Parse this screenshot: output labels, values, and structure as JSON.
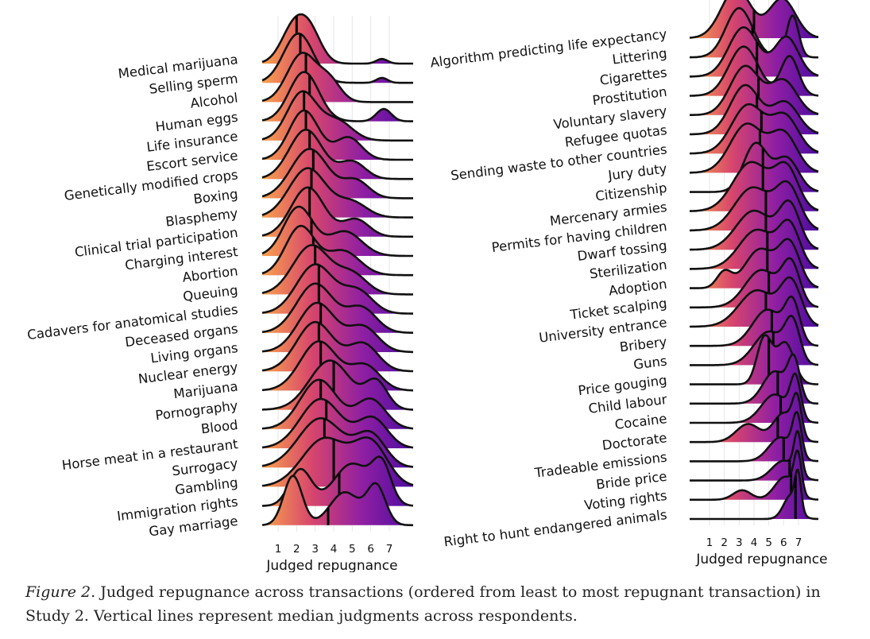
{
  "caption": {
    "label": "Figure 2",
    "text": ". Judged repugnance across transactions (ordered from least to most repugnant transaction) in Study 2. Vertical lines represent median judgments across respondents."
  },
  "chart_data": [
    {
      "type": "ridgeline",
      "xlabel": "Judged repugnance",
      "xticks": [
        1,
        2,
        3,
        4,
        5,
        6,
        7
      ],
      "xlim": [
        1,
        7
      ],
      "color_scale": [
        "#f9a24c",
        "#d6456d",
        "#8f1fa3",
        "#4b0ca0"
      ],
      "grid": true,
      "legend": "none",
      "series": [
        {
          "name": "Medical marijuana",
          "median": 2.0,
          "peaks": [
            [
              1.9,
              1.0,
              0.7
            ],
            [
              2.8,
              0.6,
              0.6
            ],
            [
              6.6,
              0.12,
              0.3
            ]
          ]
        },
        {
          "name": "Selling sperm",
          "median": 2.2,
          "peaks": [
            [
              2.1,
              1.0,
              0.8
            ],
            [
              6.6,
              0.1,
              0.3
            ]
          ]
        },
        {
          "name": "Alcohol",
          "median": 2.5,
          "peaks": [
            [
              2.3,
              1.0,
              0.8
            ],
            [
              3.8,
              0.4,
              0.6
            ]
          ]
        },
        {
          "name": "Human eggs",
          "median": 2.7,
          "peaks": [
            [
              2.4,
              1.0,
              0.8
            ],
            [
              6.7,
              0.25,
              0.4
            ]
          ]
        },
        {
          "name": "Life insurance",
          "median": 2.4,
          "peaks": [
            [
              2.3,
              1.0,
              0.8
            ],
            [
              4.2,
              0.4,
              0.8
            ]
          ]
        },
        {
          "name": "Escort service",
          "median": 2.5,
          "peaks": [
            [
              2.4,
              1.0,
              0.8
            ],
            [
              4.8,
              0.45,
              0.7
            ]
          ]
        },
        {
          "name": "Genetically modified crops",
          "median": 2.7,
          "peaks": [
            [
              2.5,
              1.0,
              0.9
            ],
            [
              5.0,
              0.35,
              0.7
            ]
          ]
        },
        {
          "name": "Boxing",
          "median": 2.9,
          "peaks": [
            [
              2.7,
              1.0,
              1.0
            ],
            [
              5.2,
              0.35,
              0.7
            ]
          ]
        },
        {
          "name": "Blasphemy",
          "median": 2.8,
          "peaks": [
            [
              2.6,
              1.0,
              1.0
            ],
            [
              5.0,
              0.3,
              0.8
            ]
          ]
        },
        {
          "name": "Clinical trial participation",
          "median": 2.7,
          "peaks": [
            [
              2.6,
              1.0,
              0.9
            ],
            [
              5.2,
              0.35,
              0.7
            ]
          ]
        },
        {
          "name": "Charging interest",
          "median": 2.8,
          "peaks": [
            [
              2.1,
              1.0,
              0.8
            ],
            [
              4.6,
              0.5,
              0.9
            ]
          ]
        },
        {
          "name": "Abortion",
          "median": 2.9,
          "peaks": [
            [
              2.2,
              1.0,
              0.8
            ],
            [
              4.5,
              0.5,
              0.9
            ]
          ]
        },
        {
          "name": "Queuing",
          "median": 3.0,
          "peaks": [
            [
              2.8,
              1.0,
              1.0
            ],
            [
              5.0,
              0.4,
              0.8
            ]
          ]
        },
        {
          "name": "Cadavers for anatomical studies",
          "median": 3.2,
          "peaks": [
            [
              3.0,
              1.0,
              1.0
            ],
            [
              5.3,
              0.45,
              0.8
            ]
          ]
        },
        {
          "name": "Deceased organs",
          "median": 3.2,
          "peaks": [
            [
              3.0,
              1.0,
              1.0
            ],
            [
              5.5,
              0.5,
              0.8
            ]
          ]
        },
        {
          "name": "Living organs",
          "median": 3.3,
          "peaks": [
            [
              3.1,
              1.0,
              1.0
            ],
            [
              5.6,
              0.5,
              0.8
            ]
          ]
        },
        {
          "name": "Nuclear energy",
          "median": 3.2,
          "peaks": [
            [
              3.0,
              1.0,
              1.0
            ],
            [
              5.6,
              0.55,
              0.8
            ]
          ]
        },
        {
          "name": "Marijuana",
          "median": 3.3,
          "peaks": [
            [
              3.2,
              1.0,
              1.0
            ],
            [
              5.7,
              0.5,
              0.8
            ]
          ]
        },
        {
          "name": "Pornography",
          "median": 4.0,
          "peaks": [
            [
              3.8,
              1.0,
              1.1
            ],
            [
              6.3,
              0.55,
              0.6
            ]
          ]
        },
        {
          "name": "Blood",
          "median": 3.3,
          "peaks": [
            [
              3.2,
              1.0,
              1.0
            ],
            [
              6.0,
              0.6,
              0.8
            ]
          ]
        },
        {
          "name": "Horse meat in a restaurant",
          "median": 3.6,
          "peaks": [
            [
              3.3,
              1.0,
              1.1
            ],
            [
              6.1,
              0.6,
              0.8
            ]
          ]
        },
        {
          "name": "Surrogacy",
          "median": 3.5,
          "peaks": [
            [
              3.3,
              1.0,
              1.2
            ],
            [
              6.0,
              0.65,
              0.8
            ]
          ]
        },
        {
          "name": "Gambling",
          "median": 4.0,
          "peaks": [
            [
              3.5,
              0.9,
              1.2
            ],
            [
              6.0,
              0.8,
              0.9
            ]
          ]
        },
        {
          "name": "Immigration rights",
          "median": 4.3,
          "peaks": [
            [
              2.2,
              0.6,
              0.6
            ],
            [
              5.0,
              0.7,
              1.0
            ],
            [
              6.6,
              0.6,
              0.5
            ]
          ]
        },
        {
          "name": "Gay marriage",
          "median": 3.7,
          "peaks": [
            [
              1.8,
              0.9,
              0.5
            ],
            [
              4.6,
              0.6,
              0.8
            ],
            [
              6.3,
              0.7,
              0.5
            ]
          ]
        },
        {
          "name": "Algorithm predicting life expectancy",
          "median": 4.0,
          "peaks": [
            [
              2.8,
              1.0,
              1.0
            ],
            [
              5.9,
              0.8,
              0.9
            ]
          ]
        },
        {
          "name": "Littering",
          "median": 3.9,
          "peaks": [
            [
              3.0,
              1.0,
              0.9
            ],
            [
              6.6,
              0.85,
              0.4
            ]
          ]
        },
        {
          "name": "Cigarettes",
          "median": 4.2,
          "peaks": [
            [
              3.3,
              1.0,
              1.0
            ],
            [
              6.2,
              0.8,
              0.8
            ]
          ]
        },
        {
          "name": "Prostitution",
          "median": 4.2,
          "peaks": [
            [
              3.3,
              1.0,
              1.0
            ],
            [
              6.4,
              0.8,
              0.6
            ]
          ]
        },
        {
          "name": "Voluntary slavery",
          "median": 4.3,
          "peaks": [
            [
              3.4,
              1.0,
              1.0
            ],
            [
              6.0,
              0.7,
              0.9
            ]
          ]
        },
        {
          "name": "Refugee quotas",
          "median": 4.2,
          "peaks": [
            [
              3.4,
              1.0,
              1.0
            ],
            [
              6.1,
              0.65,
              0.9
            ]
          ]
        },
        {
          "name": "Sending waste to other countries",
          "median": 4.5,
          "peaks": [
            [
              3.6,
              1.0,
              1.1
            ],
            [
              6.1,
              0.75,
              0.9
            ]
          ]
        },
        {
          "name": "Jury duty",
          "median": 4.4,
          "peaks": [
            [
              3.5,
              1.0,
              1.1
            ],
            [
              6.0,
              0.8,
              0.9
            ]
          ]
        },
        {
          "name": "Citizenship",
          "median": 4.6,
          "peaks": [
            [
              4.1,
              1.0,
              0.8
            ],
            [
              6.2,
              0.7,
              0.8
            ]
          ]
        },
        {
          "name": "Mercenary armies",
          "median": 4.6,
          "peaks": [
            [
              3.8,
              1.0,
              1.2
            ],
            [
              6.2,
              0.85,
              0.8
            ]
          ]
        },
        {
          "name": "Permits for having children",
          "median": 4.8,
          "peaks": [
            [
              3.9,
              0.9,
              1.2
            ],
            [
              6.3,
              0.9,
              0.8
            ]
          ]
        },
        {
          "name": "Dwarf tossing",
          "median": 4.8,
          "peaks": [
            [
              4.0,
              0.85,
              1.2
            ],
            [
              6.4,
              0.95,
              0.7
            ]
          ]
        },
        {
          "name": "Sterilization",
          "median": 4.9,
          "peaks": [
            [
              4.2,
              0.9,
              1.2
            ],
            [
              6.4,
              0.95,
              0.7
            ]
          ]
        },
        {
          "name": "Adoption",
          "median": 4.9,
          "peaks": [
            [
              2.0,
              0.35,
              0.5
            ],
            [
              4.4,
              0.85,
              1.0
            ],
            [
              6.4,
              0.95,
              0.7
            ]
          ]
        },
        {
          "name": "Ticket scalping",
          "median": 5.0,
          "peaks": [
            [
              4.5,
              0.9,
              1.1
            ],
            [
              6.5,
              1.0,
              0.6
            ]
          ]
        },
        {
          "name": "University entrance",
          "median": 4.8,
          "peaks": [
            [
              4.2,
              0.8,
              1.2
            ],
            [
              6.5,
              0.95,
              0.7
            ]
          ]
        },
        {
          "name": "Bribery",
          "median": 5.2,
          "peaks": [
            [
              4.9,
              0.9,
              1.0
            ],
            [
              6.6,
              1.0,
              0.5
            ]
          ]
        },
        {
          "name": "Guns",
          "median": 5.3,
          "peaks": [
            [
              5.0,
              0.85,
              1.0
            ],
            [
              6.6,
              1.0,
              0.5
            ]
          ]
        },
        {
          "name": "Price gouging",
          "median": 5.0,
          "peaks": [
            [
              4.7,
              0.95,
              0.5
            ],
            [
              6.1,
              0.85,
              0.6
            ]
          ]
        },
        {
          "name": "Child labour",
          "median": 5.6,
          "peaks": [
            [
              5.4,
              0.8,
              0.8
            ],
            [
              6.7,
              1.0,
              0.4
            ]
          ]
        },
        {
          "name": "Cocaine",
          "median": 5.8,
          "peaks": [
            [
              5.4,
              0.7,
              0.9
            ],
            [
              6.8,
              1.0,
              0.35
            ]
          ]
        },
        {
          "name": "Doctorate",
          "median": 5.6,
          "peaks": [
            [
              3.6,
              0.5,
              0.8
            ],
            [
              6.0,
              0.8,
              0.7
            ],
            [
              6.9,
              1.0,
              0.3
            ]
          ]
        },
        {
          "name": "Tradeable emissions",
          "median": 6.0,
          "peaks": [
            [
              5.8,
              0.6,
              0.8
            ],
            [
              6.9,
              1.0,
              0.3
            ]
          ]
        },
        {
          "name": "Bride price",
          "median": 6.4,
          "peaks": [
            [
              6.0,
              0.5,
              0.8
            ],
            [
              6.95,
              1.0,
              0.25
            ]
          ]
        },
        {
          "name": "Voting rights",
          "median": 6.5,
          "peaks": [
            [
              3.2,
              0.25,
              0.6
            ],
            [
              6.1,
              0.6,
              0.7
            ],
            [
              6.95,
              1.0,
              0.25
            ]
          ]
        },
        {
          "name": "Right to hunt endangered animals",
          "median": 6.8,
          "peaks": [
            [
              6.5,
              0.7,
              0.5
            ],
            [
              6.97,
              1.0,
              0.2
            ]
          ]
        }
      ]
    }
  ]
}
